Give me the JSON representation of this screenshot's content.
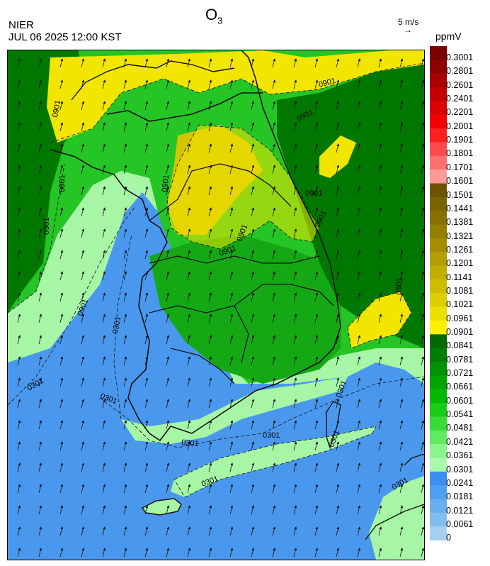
{
  "title": {
    "species": "O",
    "subscript": "3"
  },
  "agency": "NIER",
  "datetime": "JUL 06 2025 12:00 KST",
  "wind_reference": {
    "speed_label": "5 m/s",
    "arrow_glyph": "→"
  },
  "unit": "ppmV",
  "legend": {
    "labels": [
      "0.3001",
      "0.2801",
      "0.2601",
      "0.2401",
      "0.2201",
      "0.2001",
      "0.1901",
      "0.1801",
      "0.1701",
      "0.1601",
      "0.1501",
      "0.1441",
      "0.1381",
      "0.1321",
      "0.1261",
      "0.1201",
      "0.1141",
      "0.1081",
      "0.1021",
      "0.0961",
      "0.0901",
      "0.0841",
      "0.0781",
      "0.0721",
      "0.0661",
      "0.0601",
      "0.0541",
      "0.0481",
      "0.0421",
      "0.0361",
      "0.0301",
      "0.0241",
      "0.0181",
      "0.0121",
      "0.0061",
      "0"
    ],
    "colors": [
      "#7a0000",
      "#8e0000",
      "#a80000",
      "#c20000",
      "#dc0000",
      "#f50000",
      "#ff2020",
      "#ff4a4a",
      "#ff7070",
      "#ff9a9a",
      "#6e5400",
      "#7a6400",
      "#887000",
      "#967e00",
      "#a48e00",
      "#b29e00",
      "#c0ae00",
      "#cebe00",
      "#dcd000",
      "#ece000",
      "#fff000",
      "#006a00",
      "#007e00",
      "#009200",
      "#00a600",
      "#00ba00",
      "#18cc18",
      "#38dc38",
      "#60ea60",
      "#8cf48c",
      "#aaf8aa",
      "#3a8ff0",
      "#4f9ff0",
      "#68aef0",
      "#82bdf0",
      "#a3d0f0"
    ]
  },
  "map": {
    "colors": {
      "ocean_blue": "#4a98ee",
      "light_green": "#a6f6a6",
      "green": "#24c524",
      "mid_green": "#14a814",
      "dark_green": "#007800",
      "yellow": "#f2e600",
      "olive_yellow": "#d4c400",
      "boundary": "#111111"
    },
    "contour_labels": [
      "0901",
      "0901",
      "0301",
      "0301",
      "0901",
      "0901",
      "0901",
      "0901",
      "0901",
      "0901",
      "0901",
      "0901",
      "0301",
      "0301",
      "0301",
      "0301",
      "0301",
      "0301",
      "0301",
      "0301",
      "0301"
    ]
  }
}
